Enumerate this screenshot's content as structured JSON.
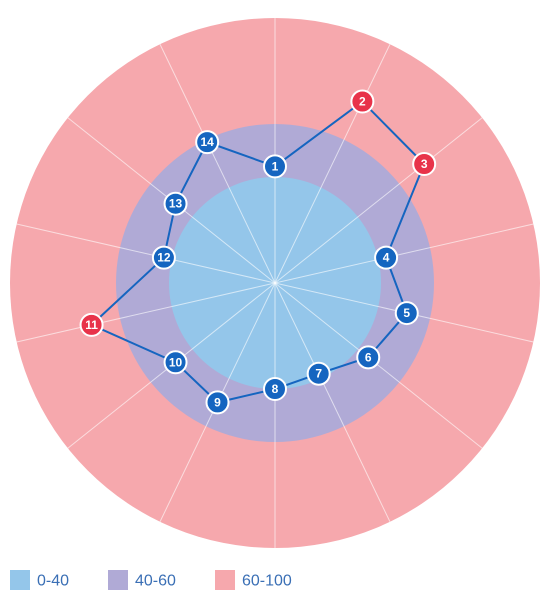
{
  "chart_data": {
    "type": "radar",
    "categories": [
      "1",
      "2",
      "3",
      "4",
      "5",
      "6",
      "7",
      "8",
      "9",
      "10",
      "11",
      "12",
      "13",
      "14"
    ],
    "values": [
      44,
      76,
      72,
      43,
      51,
      45,
      38,
      40,
      50,
      48,
      71,
      43,
      48,
      59
    ],
    "colors": [
      "#1565c0",
      "#e8334a",
      "#e8334a",
      "#1565c0",
      "#1565c0",
      "#1565c0",
      "#1565c0",
      "#1565c0",
      "#1565c0",
      "#1565c0",
      "#e8334a",
      "#1565c0",
      "#1565c0",
      "#1565c0"
    ],
    "line_color": "#1565c0",
    "rlim": [
      0,
      100
    ],
    "bands": [
      {
        "name": "0-40",
        "from": 0,
        "to": 40,
        "color": "#94c6ea"
      },
      {
        "name": "40-60",
        "from": 40,
        "to": 60,
        "color": "#b0aad6"
      },
      {
        "name": "60-100",
        "from": 60,
        "to": 100,
        "color": "#f6a8ad"
      }
    ]
  }
}
